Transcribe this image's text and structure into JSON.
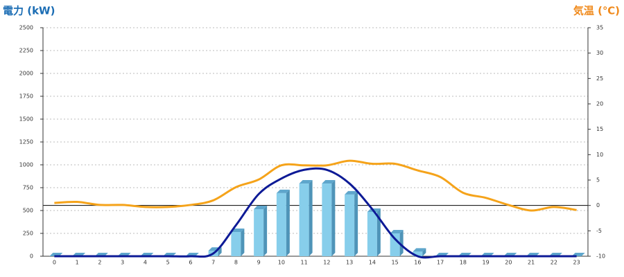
{
  "chart_data": {
    "type": "bar",
    "y_title": "電力 (kW)",
    "y2_title": "気温 (℃)",
    "y_title_color": "#1b6db4",
    "y2_title_color": "#f08a1c",
    "categories": [
      "0",
      "1",
      "2",
      "3",
      "4",
      "5",
      "6",
      "7",
      "8",
      "9",
      "10",
      "11",
      "12",
      "13",
      "14",
      "15",
      "16",
      "17",
      "18",
      "19",
      "20",
      "21",
      "22",
      "23"
    ],
    "series": [
      {
        "type": "bar",
        "color": "#87ceeb",
        "values": [
          0,
          0,
          0,
          0,
          0,
          0,
          0,
          60,
          265,
          515,
          690,
          795,
          795,
          675,
          485,
          250,
          50,
          0,
          0,
          0,
          0,
          0,
          0,
          0
        ]
      },
      {
        "type": "line",
        "color": "#0d1a96",
        "values": [
          0,
          0,
          0,
          0,
          0,
          0,
          0,
          30,
          340,
          680,
          850,
          945,
          945,
          795,
          515,
          190,
          0,
          0,
          0,
          0,
          0,
          0,
          0,
          0
        ]
      },
      {
        "type": "line",
        "color": "#f5a31a",
        "axis": "y2",
        "values": [
          0.5,
          0.7,
          0.1,
          0.1,
          -0.3,
          -0.3,
          0.1,
          1,
          3.6,
          5.1,
          7.9,
          7.9,
          7.9,
          8.8,
          8.2,
          8.2,
          6.9,
          5.6,
          2.5,
          1.5,
          0.1,
          -1,
          -0.3,
          -0.9
        ]
      }
    ],
    "ylim": [
      0,
      2500
    ],
    "yticks": [
      0,
      250,
      500,
      750,
      1000,
      1250,
      1500,
      1750,
      2000,
      2250,
      2500
    ],
    "y2lim": [
      -10,
      35
    ],
    "y2ticks": [
      -10,
      -5,
      0,
      5,
      10,
      15,
      20,
      25,
      30,
      35
    ],
    "grid": true,
    "y2_zero_line": true
  }
}
